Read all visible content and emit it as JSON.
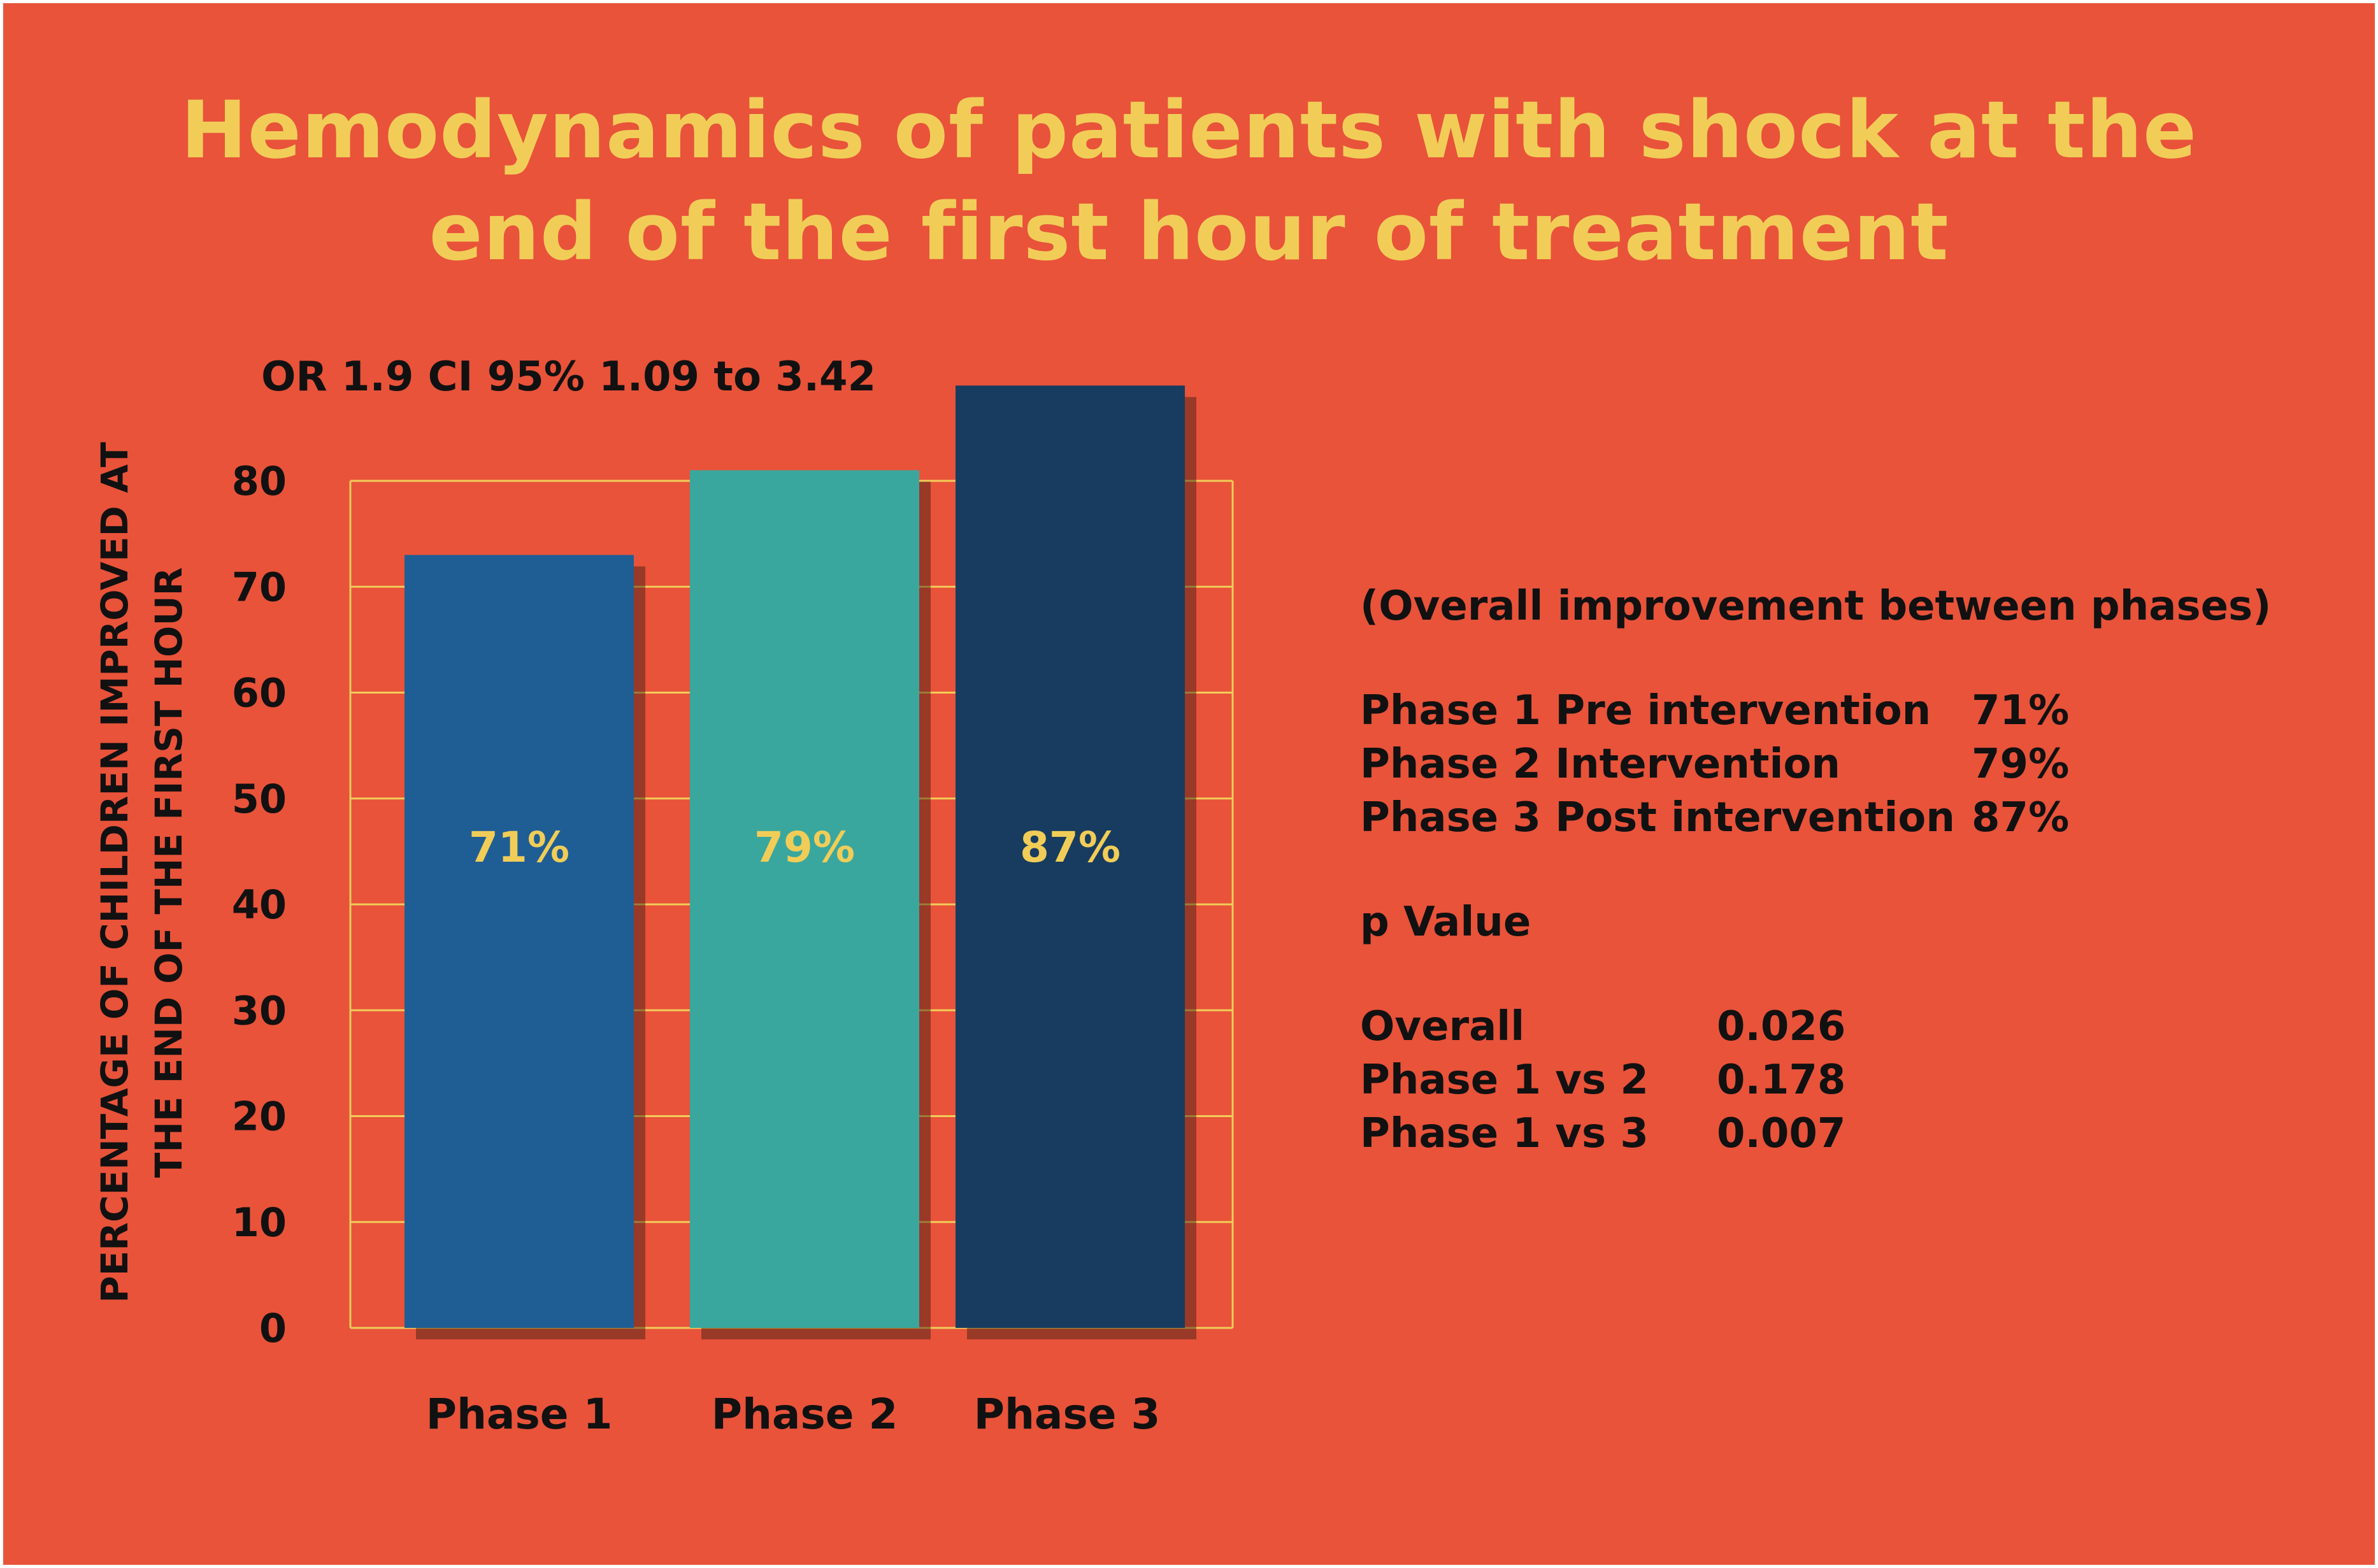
{
  "title_lines": [
    "Hemodynamics of patients with shock at the",
    "end of the first hour of treatment"
  ],
  "colors": {
    "background": "#E8533A",
    "title": "#F1CD58",
    "gridline": "#F1CD58",
    "bar_phase1": "#1F5E95",
    "bar_phase2": "#3AA79E",
    "bar_phase3": "#173C5F",
    "bar_label": "#F1CD58",
    "text": "#111111"
  },
  "chart_data": {
    "type": "bar",
    "annotation": "OR 1.9 CI 95% 1.09 to 3.42",
    "ylabel_lines": [
      "PERCENTAGE OF CHILDREN IMPROVED AT",
      "THE END OF THE FIRST HOUR"
    ],
    "categories": [
      "Phase 1",
      "Phase 2",
      "Phase 3"
    ],
    "values": [
      71,
      79,
      87
    ],
    "data_labels": [
      "71%",
      "79%",
      "87%"
    ],
    "yticks": [
      "0",
      "10",
      "20",
      "30",
      "40",
      "50",
      "60",
      "70",
      "80"
    ],
    "ylim": [
      0,
      80
    ],
    "grid": true
  },
  "stats": {
    "heading": "(Overall improvement between phases)",
    "phases": [
      {
        "label": "Phase 1 Pre intervention",
        "value": "71%"
      },
      {
        "label": "Phase 2 Intervention",
        "value": "79%"
      },
      {
        "label": "Phase 3 Post intervention",
        "value": "87%"
      }
    ],
    "pvalue_heading": "p Value",
    "pvalues": [
      {
        "label": "Overall",
        "value": "0.026"
      },
      {
        "label": "Phase 1 vs 2",
        "value": "0.178"
      },
      {
        "label": "Phase 1 vs 3",
        "value": "0.007"
      }
    ]
  }
}
